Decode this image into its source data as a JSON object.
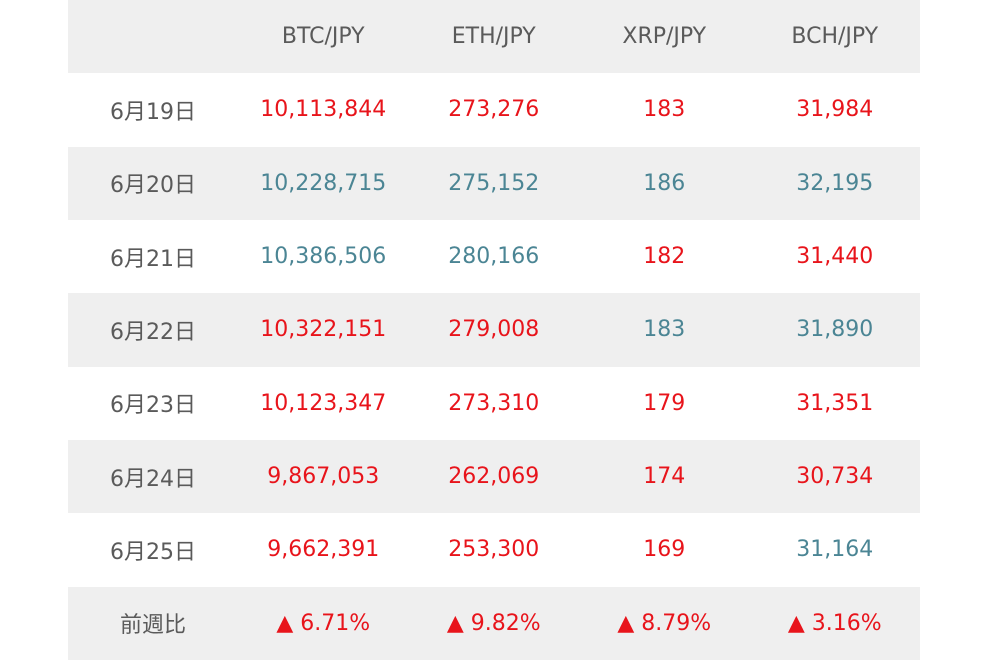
{
  "table": {
    "header": [
      "BTC/JPY",
      "ETH/JPY",
      "XRP/JPY",
      "BCH/JPY"
    ],
    "rows": [
      {
        "label": "6月19日",
        "cells": [
          "10,113,844",
          "273,276",
          "183",
          "31,984"
        ],
        "colors": [
          "#e8141b",
          "#e8141b",
          "#e8141b",
          "#e8141b"
        ]
      },
      {
        "label": "6月20日",
        "cells": [
          "10,228,715",
          "275,152",
          "186",
          "32,195"
        ],
        "colors": [
          "#4b8594",
          "#4b8594",
          "#4b8594",
          "#4b8594"
        ]
      },
      {
        "label": "6月21日",
        "cells": [
          "10,386,506",
          "280,166",
          "182",
          "31,440"
        ],
        "colors": [
          "#4b8594",
          "#4b8594",
          "#e8141b",
          "#e8141b"
        ]
      },
      {
        "label": "6月22日",
        "cells": [
          "10,322,151",
          "279,008",
          "183",
          "31,890"
        ],
        "colors": [
          "#e8141b",
          "#e8141b",
          "#4b8594",
          "#4b8594"
        ]
      },
      {
        "label": "6月23日",
        "cells": [
          "10,123,347",
          "273,310",
          "179",
          "31,351"
        ],
        "colors": [
          "#e8141b",
          "#e8141b",
          "#e8141b",
          "#e8141b"
        ]
      },
      {
        "label": "6月24日",
        "cells": [
          "9,867,053",
          "262,069",
          "174",
          "30,734"
        ],
        "colors": [
          "#e8141b",
          "#e8141b",
          "#e8141b",
          "#e8141b"
        ]
      },
      {
        "label": "6月25日",
        "cells": [
          "9,662,391",
          "253,300",
          "169",
          "31,164"
        ],
        "colors": [
          "#e8141b",
          "#e8141b",
          "#e8141b",
          "#4b8594"
        ]
      },
      {
        "label": "前週比",
        "cells": [
          "▲ 6.71%",
          "▲ 9.82%",
          "▲ 8.79%",
          "▲ 3.16%"
        ],
        "colors": [
          "#e8141b",
          "#e8141b",
          "#e8141b",
          "#e8141b"
        ]
      }
    ]
  }
}
